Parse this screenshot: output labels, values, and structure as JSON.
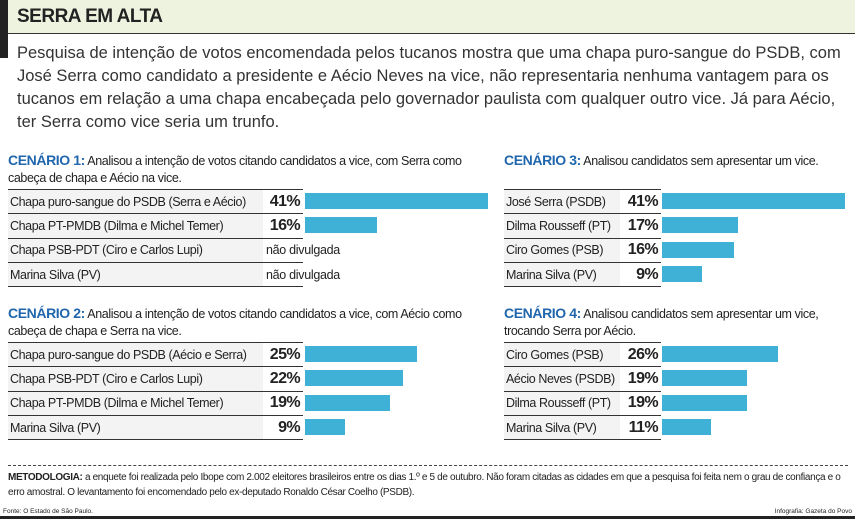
{
  "title": "SERRA EM ALTA",
  "intro": "Pesquisa de intenção de votos encomendada pelos tucanos mostra que uma chapa puro-sangue do PSDB, com José Serra como candidato a presidente e Aécio Neves na vice, não representaria nenhuma vantagem para os tucanos em relação a uma chapa encabeçada pelo governador paulista com qualquer outro vice. Já para Aécio, ter Serra como vice seria um trunfo.",
  "colors": {
    "bar": "#3fb1d7",
    "title_accent": "#1f66ad",
    "header_bg": "#eef3df"
  },
  "chart_data": [
    {
      "type": "bar",
      "orientation": "horizontal",
      "title": "CENÁRIO 1:",
      "subtitle": "Analisou a intenção de votos citando candidatos a vice, com Serra como cabeça de chapa e Aécio na vice.",
      "categories": [
        "Chapa puro-sangue do PSDB (Serra e Aécio)",
        "Chapa PT-PMDB (Dilma e Michel Temer)",
        "Chapa PSB-PDT (Ciro e Carlos Lupi)",
        "Marina Silva (PV)"
      ],
      "values": [
        41,
        16,
        null,
        null
      ],
      "labels": [
        "41%",
        "16%",
        "não divulgada",
        "não divulgada"
      ],
      "unit": "%"
    },
    {
      "type": "bar",
      "orientation": "horizontal",
      "title": "CENÁRIO 2:",
      "subtitle": "Analisou a intenção de votos citando candidatos a vice, com Aécio como cabeça de chapa e Serra na vice.",
      "categories": [
        "Chapa puro-sangue do PSDB (Aécio e Serra)",
        "Chapa PSB-PDT (Ciro e Carlos Lupi)",
        "Chapa PT-PMDB (Dilma e Michel Temer)",
        "Marina Silva (PV)"
      ],
      "values": [
        25,
        22,
        19,
        9
      ],
      "labels": [
        "25%",
        "22%",
        "19%",
        "9%"
      ],
      "unit": "%"
    },
    {
      "type": "bar",
      "orientation": "horizontal",
      "title": "CENÁRIO 3:",
      "subtitle": "Analisou candidatos sem apresentar um vice.",
      "categories": [
        "José Serra (PSDB)",
        "Dilma Rousseff (PT)",
        "Ciro Gomes (PSB)",
        "Marina Silva (PV)"
      ],
      "values": [
        41,
        17,
        16,
        9
      ],
      "labels": [
        "41%",
        "17%",
        "16%",
        "9%"
      ],
      "unit": "%"
    },
    {
      "type": "bar",
      "orientation": "horizontal",
      "title": "CENÁRIO 4:",
      "subtitle": "Analisou candidatos sem apresentar um vice, trocando Serra por Aécio.",
      "categories": [
        "Ciro Gomes (PSB)",
        "Aécio Neves (PSDB)",
        "Dilma Rousseff (PT)",
        "Marina Silva (PV)"
      ],
      "values": [
        26,
        19,
        19,
        11
      ],
      "labels": [
        "26%",
        "19%",
        "19%",
        "11%"
      ],
      "unit": "%"
    }
  ],
  "methodology": {
    "label": "METODOLOGIA:",
    "text": " a enquete foi realizada pelo Ibope com 2.002 eleitores brasileiros entre os dias 1.º e 5 de outubro. Não foram citadas as cidades em que a pesquisa foi feita nem o grau de confiança e o erro amostral. O levantamento foi encomendado pelo ex-deputado Ronaldo César Coelho (PSDB)."
  },
  "source": "Fonte: O Estado de São Paulo.",
  "credit": "Infografia: Gazeta do Povo"
}
